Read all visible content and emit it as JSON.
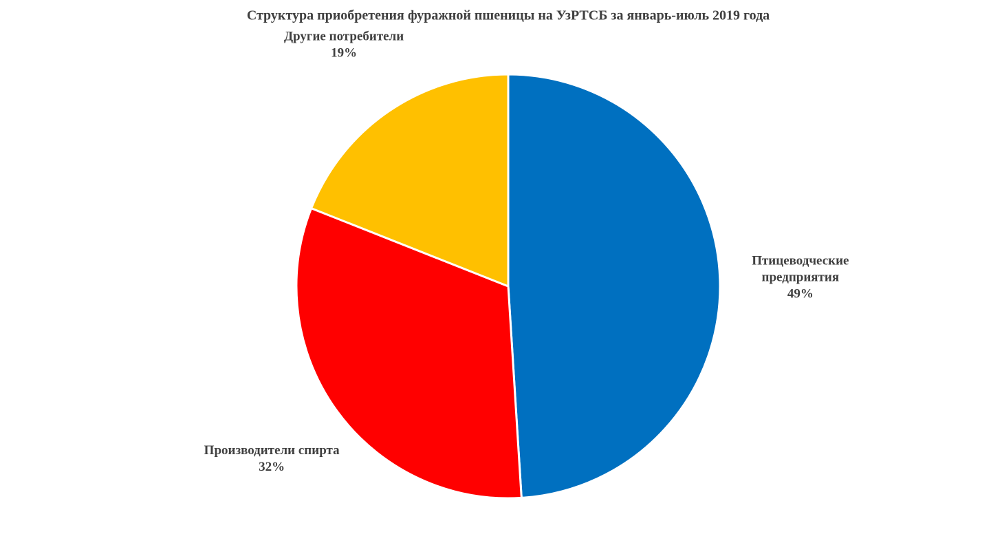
{
  "chart_data": {
    "type": "pie",
    "title": "Структура приобретения фуражной пшеницы на УзРТСБ за январь-июль 2019 года",
    "categories": [
      "Птицеводческие предприятия",
      "Производители спирта",
      "Другие потребители"
    ],
    "values": [
      49,
      32,
      19
    ],
    "value_labels": [
      "49%",
      "32%",
      "19%"
    ],
    "colors": [
      "#0070c0",
      "#ff0000",
      "#ffc000"
    ]
  }
}
